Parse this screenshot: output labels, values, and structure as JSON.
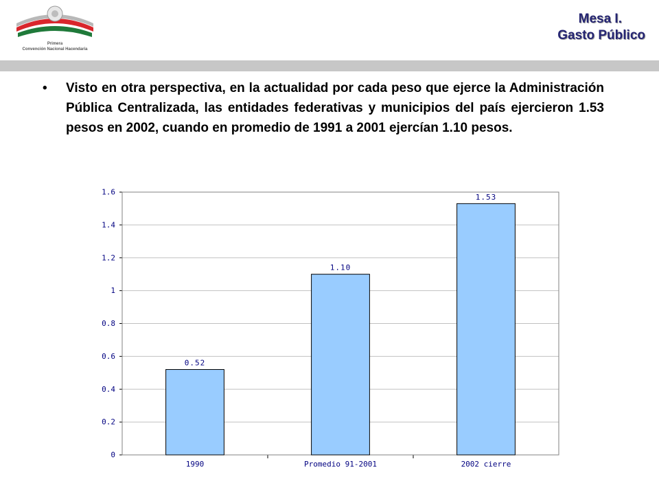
{
  "header": {
    "logo_line1": "Primera",
    "logo_line2": "Convención Nacional Hacendaria",
    "title_line1": "Mesa I.",
    "title_line2": "Gasto Público"
  },
  "bullet": {
    "symbol": "•",
    "text": "Visto en otra perspectiva, en la actualidad por cada peso que ejerce la Administración Pública Centralizada, las entidades federativas y municipios del país ejercieron 1.53 pesos en 2002, cuando en promedio de 1991 a 2001 ejercían 1.10 pesos."
  },
  "chart_data": {
    "type": "bar",
    "categories": [
      "1990",
      "Promedio 91-2001",
      "2002 cierre"
    ],
    "values": [
      0.52,
      1.1,
      1.53
    ],
    "value_labels": [
      "0.52",
      "1.10",
      "1.53"
    ],
    "y_ticks": [
      "0",
      "0.2",
      "0.4",
      "0.6",
      "0.8",
      "1",
      "1.2",
      "1.4",
      "1.6"
    ],
    "ylim": [
      0,
      1.6
    ],
    "grid": true,
    "colors": {
      "bar": "#99ccff",
      "bar_border": "#000000",
      "labels": "#000080",
      "grid": "#c0c0c0"
    }
  }
}
